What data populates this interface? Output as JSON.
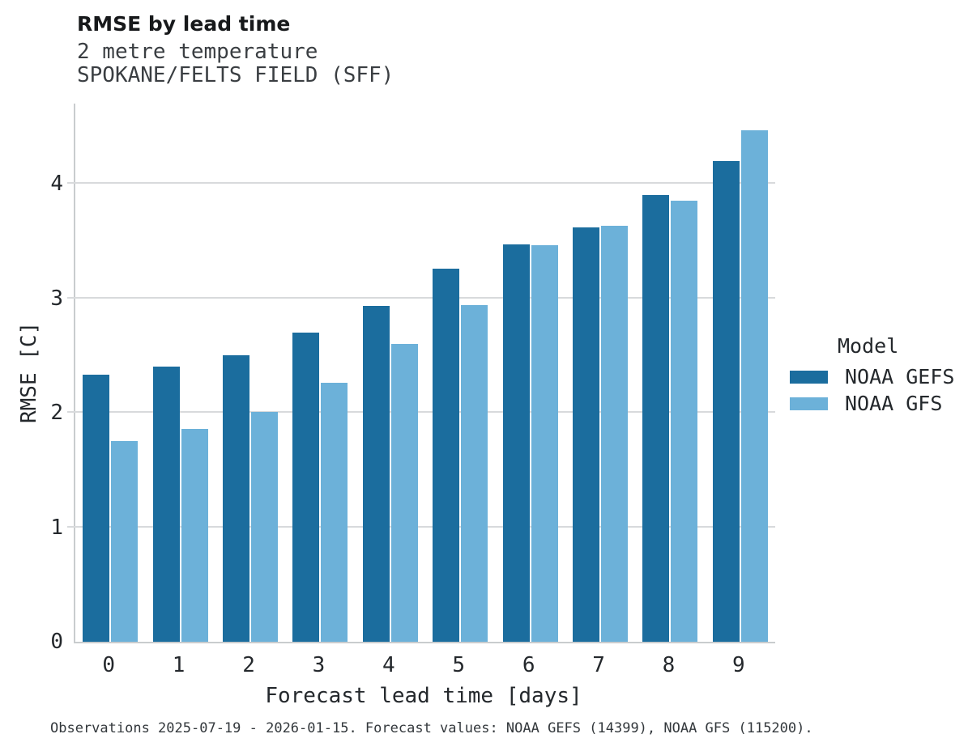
{
  "header": {
    "title": "RMSE by lead time",
    "subtitle_line1": "2 metre temperature",
    "subtitle_line2": "SPOKANE/FELTS FIELD (SFF)"
  },
  "chart_data": {
    "type": "bar",
    "title": "RMSE by lead time",
    "subtitle": "2 metre temperature | SPOKANE/FELTS FIELD (SFF)",
    "categories": [
      "0",
      "1",
      "2",
      "3",
      "4",
      "5",
      "6",
      "7",
      "8",
      "9"
    ],
    "series": [
      {
        "name": "NOAA GEFS",
        "color": "#1b6d9e",
        "values": [
          2.33,
          2.4,
          2.5,
          2.7,
          2.93,
          3.26,
          3.47,
          3.62,
          3.9,
          4.2
        ]
      },
      {
        "name": "NOAA GFS",
        "color": "#6cb1d9",
        "values": [
          1.75,
          1.86,
          2.01,
          2.26,
          2.6,
          2.94,
          3.46,
          3.63,
          3.85,
          4.47
        ]
      }
    ],
    "xlabel": "Forecast lead time [days]",
    "ylabel": "RMSE [C]",
    "ylim": [
      0,
      4.7
    ],
    "yticks": [
      0,
      1,
      2,
      3,
      4
    ],
    "grid": "horizontal gridlines at integer y ticks, no vertical grid",
    "legend_title": "Model",
    "legend_position": "right"
  },
  "legend": {
    "title": "Model",
    "items": [
      {
        "label": "NOAA GEFS",
        "color": "#1b6d9e"
      },
      {
        "label": "NOAA GFS",
        "color": "#6cb1d9"
      }
    ]
  },
  "axes": {
    "xlabel": "Forecast lead time [days]",
    "ylabel": "RMSE [C]"
  },
  "caption": "Observations 2025-07-19 - 2026-01-15. Forecast values: NOAA GEFS (14399), NOAA GFS (115200).",
  "colors": {
    "gefs_bar": "#1b6d9e",
    "gfs_bar": "#6cb1d9",
    "gridline": "#d8dadc",
    "spine": "#c9ccce",
    "text": "#24282c"
  }
}
